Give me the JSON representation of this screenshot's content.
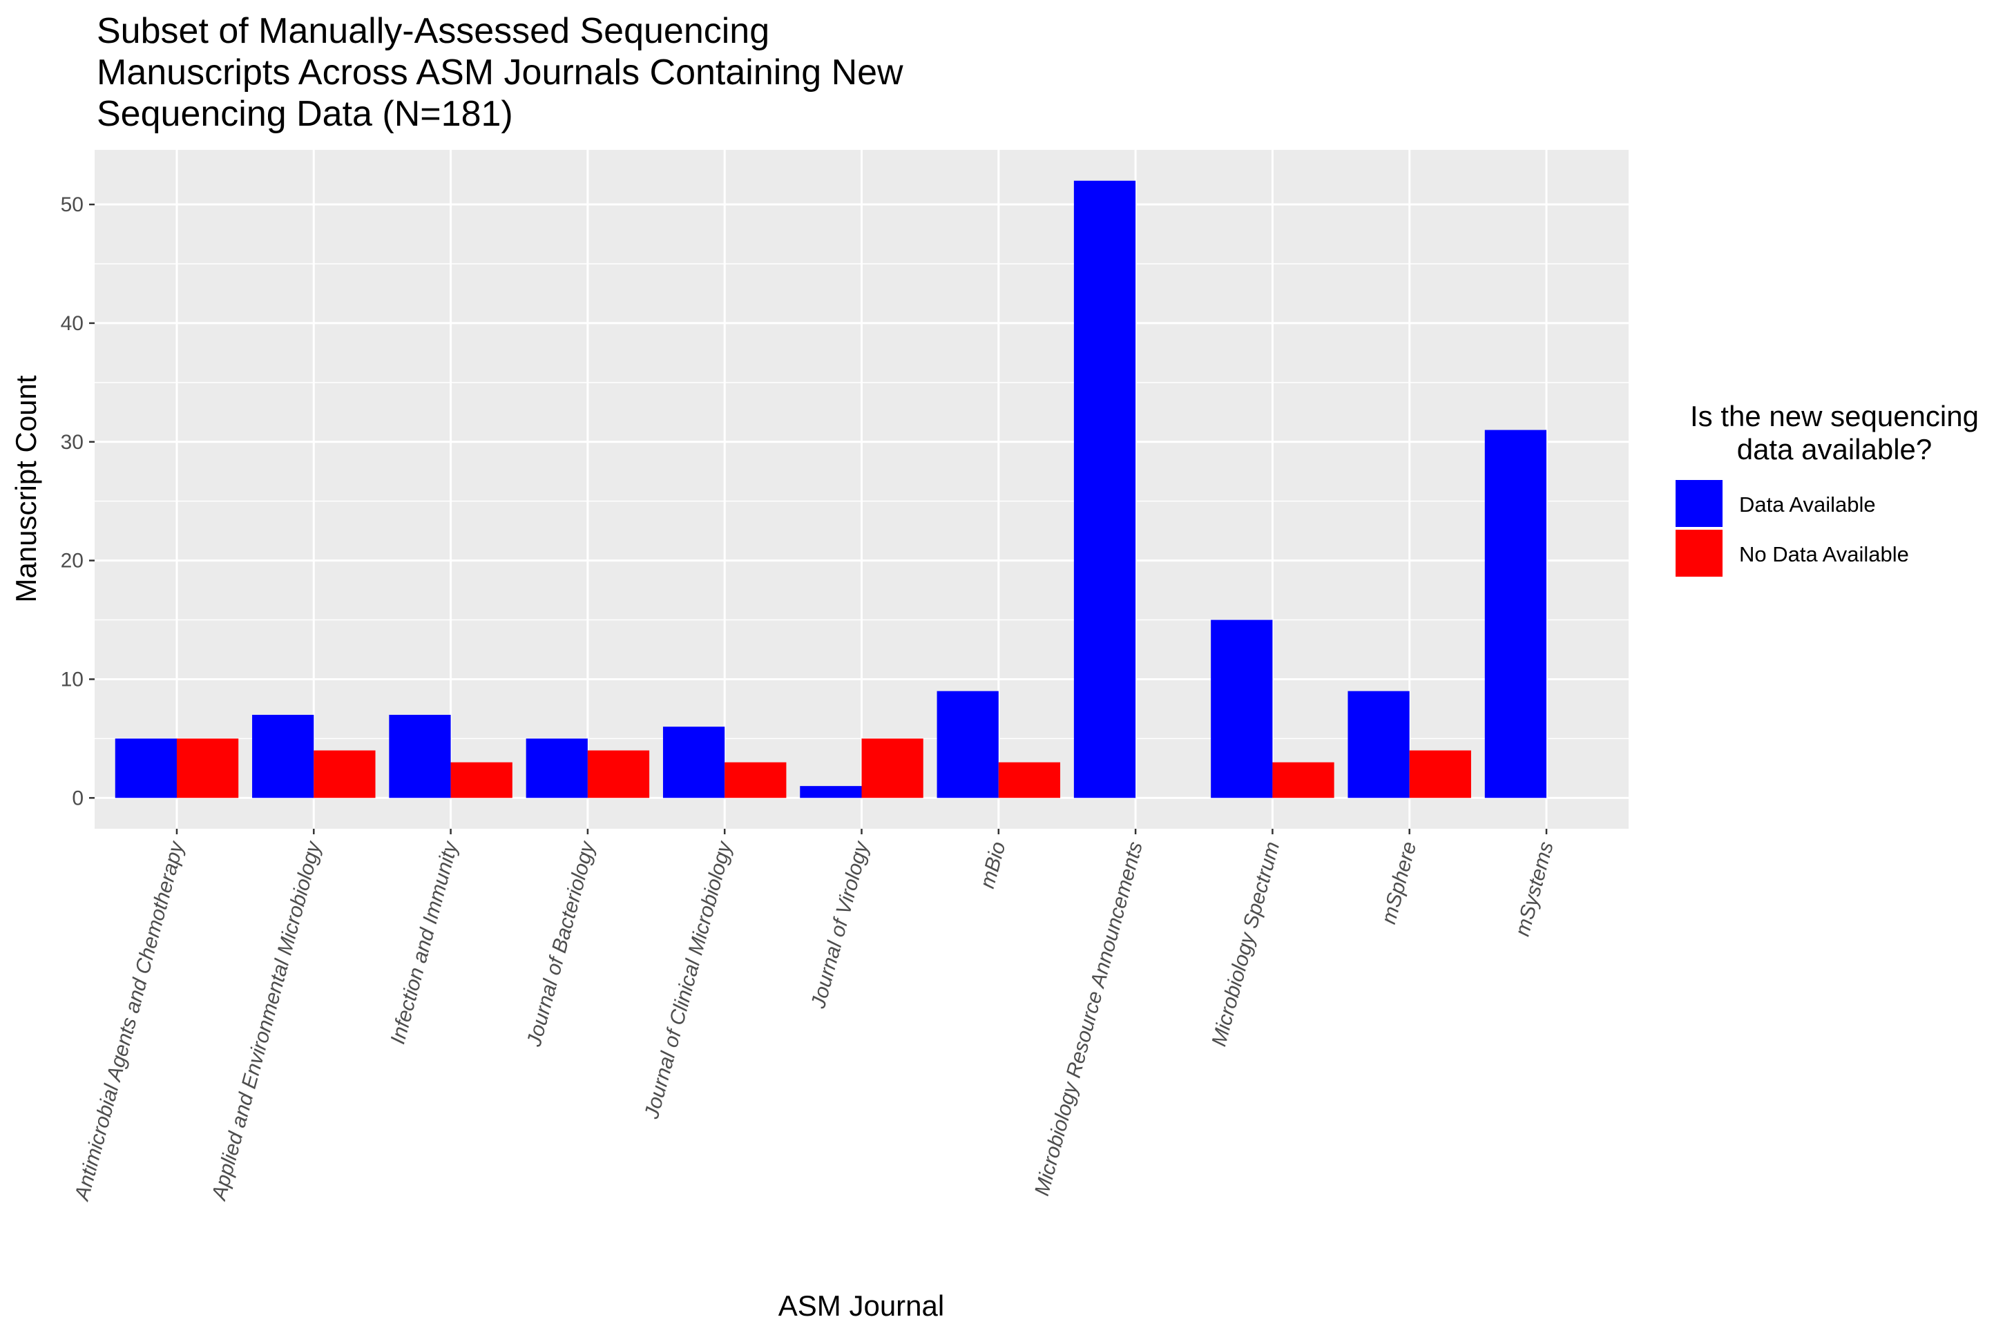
{
  "chart_data": {
    "type": "bar",
    "title_lines": [
      "Subset of Manually-Assessed Sequencing",
      "Manuscripts Across ASM Journals Containing New",
      "Sequencing Data (N=181)"
    ],
    "xlabel": "ASM Journal",
    "ylabel": "Manuscript Count",
    "ylim": [
      -2.6,
      54.6
    ],
    "yticks": [
      0,
      10,
      20,
      30,
      40,
      50
    ],
    "grid": true,
    "legend_position": "right",
    "legend_title_lines": [
      "Is the new sequencing",
      "data available?"
    ],
    "categories": [
      "Antimicrobial Agents and Chemotherapy",
      "Applied and Environmental Microbiology",
      "Infection and Immunity",
      "Journal of Bacteriology",
      "Journal of Clinical Microbiology",
      "Journal of Virology",
      "mBio",
      "Microbiology Resource Announcements",
      "Microbiology Spectrum",
      "mSphere",
      "mSystems"
    ],
    "series": [
      {
        "name": "Data Available",
        "color": "#0000FF",
        "values": [
          5,
          7,
          7,
          5,
          6,
          1,
          9,
          52,
          15,
          9,
          31
        ]
      },
      {
        "name": "No Data Available",
        "color": "#FF0000",
        "values": [
          5,
          4,
          3,
          4,
          3,
          5,
          3,
          0,
          3,
          4,
          0
        ]
      }
    ]
  }
}
